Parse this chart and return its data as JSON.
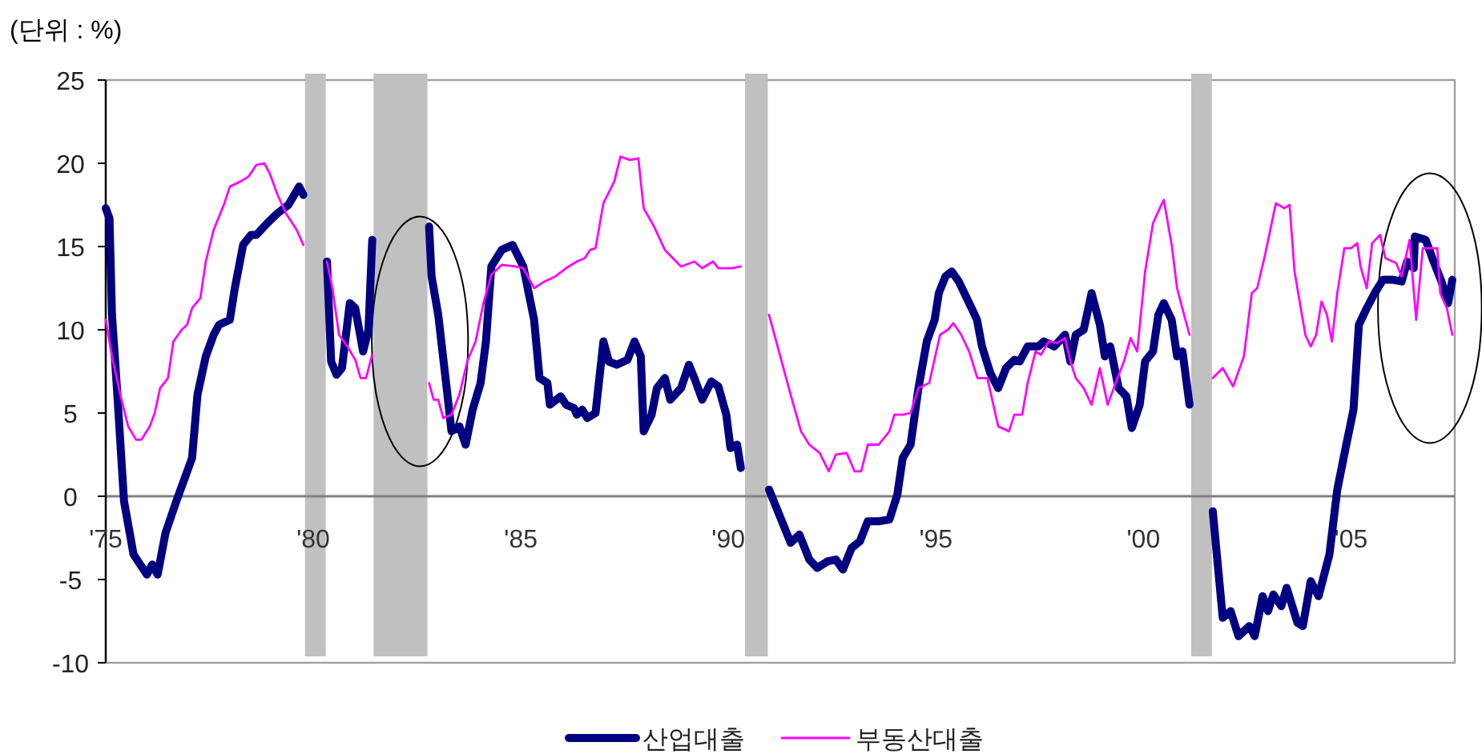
{
  "chart_data": {
    "type": "line",
    "ylabel": "(단위 : %)",
    "xlim": [
      1975,
      2007.5
    ],
    "ylim": [
      -10,
      25
    ],
    "xticks": [
      {
        "value": 1975,
        "label": "'75"
      },
      {
        "value": 1980,
        "label": "'80"
      },
      {
        "value": 1985,
        "label": "'85"
      },
      {
        "value": 1990,
        "label": "'90"
      },
      {
        "value": 1995,
        "label": "'95"
      },
      {
        "value": 2000,
        "label": "'00"
      },
      {
        "value": 2005,
        "label": "'05"
      }
    ],
    "yticks": [
      -10,
      -5,
      0,
      5,
      10,
      15,
      20,
      25
    ],
    "grid": false,
    "legend": "bottom",
    "marker": "none",
    "line_style": "solid",
    "bands": [
      {
        "axis": "x",
        "from": 1979.8,
        "to": 1980.3,
        "color": "#c0c0c0"
      },
      {
        "axis": "x",
        "from": 1981.45,
        "to": 1982.75,
        "color": "#c0c0c0"
      },
      {
        "axis": "x",
        "from": 1990.4,
        "to": 1990.95,
        "color": "#c0c0c0"
      },
      {
        "axis": "x",
        "from": 2001.15,
        "to": 2001.65,
        "color": "#c0c0c0"
      }
    ],
    "series": [
      {
        "name": "산업대출",
        "color": "#000080",
        "x": [
          1975.0,
          1975.09,
          1975.15,
          1975.28,
          1975.44,
          1975.67,
          1975.99,
          1976.12,
          1976.25,
          1976.44,
          1976.7,
          1976.89,
          1977.08,
          1977.21,
          1977.41,
          1977.6,
          1977.73,
          1977.99,
          1978.11,
          1978.31,
          1978.5,
          1978.63,
          1978.89,
          1979.14,
          1979.4,
          1979.66,
          1979.76,
          1980.33,
          1980.43,
          1980.56,
          1980.69,
          1980.88,
          1981.01,
          1981.2,
          1981.33,
          1981.42,
          1982.79,
          1982.85,
          1983.01,
          1983.2,
          1983.33,
          1983.52,
          1983.67,
          1983.84,
          1984.03,
          1984.16,
          1984.29,
          1984.54,
          1984.8,
          1985.06,
          1985.32,
          1985.45,
          1985.64,
          1985.7,
          1985.96,
          1986.09,
          1986.28,
          1986.35,
          1986.48,
          1986.6,
          1986.8,
          1986.99,
          1987.12,
          1987.31,
          1987.57,
          1987.74,
          1987.89,
          1987.96,
          1988.15,
          1988.28,
          1988.47,
          1988.6,
          1988.86,
          1989.05,
          1989.18,
          1989.37,
          1989.59,
          1989.76,
          1989.95,
          1990.05,
          1990.21,
          1990.3,
          1990.98,
          1991.24,
          1991.5,
          1991.71,
          1991.95,
          1992.14,
          1992.4,
          1992.59,
          1992.76,
          1992.97,
          1993.17,
          1993.36,
          1993.62,
          1993.88,
          1994.07,
          1994.2,
          1994.39,
          1994.58,
          1994.78,
          1994.97,
          1995.07,
          1995.23,
          1995.38,
          1995.55,
          1995.86,
          1995.99,
          1996.11,
          1996.31,
          1996.5,
          1996.69,
          1996.89,
          1997.02,
          1997.21,
          1997.47,
          1997.6,
          1997.85,
          1998.11,
          1998.24,
          1998.37,
          1998.56,
          1998.75,
          1998.95,
          1999.07,
          1999.2,
          1999.4,
          1999.59,
          1999.72,
          1999.91,
          2000.04,
          2000.23,
          2000.36,
          2000.49,
          2000.68,
          2000.81,
          2000.94,
          2001.11,
          2001.67,
          2001.91,
          2002.1,
          2002.29,
          2002.55,
          2002.68,
          2002.87,
          2003.0,
          2003.13,
          2003.32,
          2003.45,
          2003.71,
          2003.84,
          2004.03,
          2004.22,
          2004.48,
          2004.67,
          2004.87,
          2005.06,
          2005.19,
          2005.38,
          2005.57,
          2005.77,
          2006.02,
          2006.22,
          2006.35,
          2006.51,
          2006.54,
          2006.8,
          2006.99,
          2007.18,
          2007.34,
          2007.44
        ],
        "values": [
          17.3,
          16.7,
          10.9,
          6.1,
          -0.3,
          -3.5,
          -4.7,
          -4.1,
          -4.7,
          -2.2,
          -0.3,
          1.0,
          2.3,
          6.1,
          8.4,
          9.7,
          10.3,
          10.6,
          12.5,
          15.1,
          15.7,
          15.7,
          16.4,
          17.0,
          17.5,
          18.6,
          18.1,
          14.1,
          8.1,
          7.3,
          7.7,
          11.6,
          11.3,
          8.7,
          10.0,
          15.4,
          16.2,
          13.2,
          10.9,
          6.8,
          3.9,
          4.2,
          3.1,
          5.2,
          6.8,
          9.3,
          13.8,
          14.8,
          15.1,
          13.8,
          10.6,
          7.1,
          6.8,
          5.5,
          6.0,
          5.5,
          5.3,
          4.9,
          5.2,
          4.7,
          5.0,
          9.3,
          8.1,
          7.9,
          8.2,
          9.3,
          8.4,
          3.9,
          4.9,
          6.5,
          7.1,
          5.8,
          6.5,
          7.9,
          7.1,
          5.8,
          6.9,
          6.6,
          4.9,
          2.9,
          3.1,
          1.7,
          0.4,
          -1.2,
          -2.8,
          -2.3,
          -3.8,
          -4.3,
          -3.9,
          -3.8,
          -4.4,
          -3.1,
          -2.7,
          -1.5,
          -1.5,
          -1.4,
          0.1,
          2.3,
          3.1,
          6.5,
          9.3,
          10.6,
          12.2,
          13.2,
          13.5,
          12.9,
          11.3,
          10.6,
          9.0,
          7.4,
          6.5,
          7.7,
          8.2,
          8.1,
          9.0,
          9.0,
          9.3,
          9.0,
          9.7,
          8.1,
          9.7,
          10.0,
          12.2,
          10.3,
          8.4,
          9.0,
          6.5,
          6.0,
          4.1,
          5.5,
          8.1,
          8.7,
          10.9,
          11.6,
          10.6,
          8.4,
          8.7,
          5.5,
          -0.9,
          -7.3,
          -6.9,
          -8.4,
          -7.8,
          -8.4,
          -6.0,
          -6.9,
          -5.9,
          -6.6,
          -5.5,
          -7.6,
          -7.8,
          -5.1,
          -6.0,
          -3.5,
          0.4,
          2.9,
          5.2,
          10.3,
          11.3,
          12.2,
          13.0,
          13.0,
          12.9,
          14.1,
          13.7,
          15.6,
          15.4,
          14.1,
          12.9,
          11.6,
          13.0
        ]
      },
      {
        "name": "부동산대출",
        "color": "#ff00ff",
        "x": [
          1975.0,
          1975.15,
          1975.35,
          1975.54,
          1975.73,
          1975.86,
          1976.06,
          1976.18,
          1976.31,
          1976.5,
          1976.63,
          1976.83,
          1976.96,
          1977.08,
          1977.28,
          1977.41,
          1977.6,
          1977.86,
          1977.99,
          1978.24,
          1978.44,
          1978.63,
          1978.82,
          1978.95,
          1979.14,
          1979.34,
          1979.6,
          1979.76,
          1980.33,
          1980.46,
          1980.62,
          1980.82,
          1981.01,
          1981.14,
          1981.27,
          1981.42,
          1982.79,
          1982.9,
          1983.01,
          1983.13,
          1983.33,
          1983.52,
          1983.71,
          1983.91,
          1984.1,
          1984.29,
          1984.54,
          1984.87,
          1985.06,
          1985.32,
          1985.57,
          1985.83,
          1986.09,
          1986.35,
          1986.54,
          1986.67,
          1986.8,
          1986.99,
          1987.25,
          1987.4,
          1987.63,
          1987.83,
          1987.96,
          1988.21,
          1988.47,
          1988.86,
          1989.18,
          1989.37,
          1989.63,
          1989.76,
          1990.08,
          1990.3,
          1990.98,
          1991.24,
          1991.5,
          1991.75,
          1991.95,
          1992.2,
          1992.42,
          1992.59,
          1992.85,
          1993.04,
          1993.2,
          1993.36,
          1993.62,
          1993.88,
          1994.0,
          1994.2,
          1994.39,
          1994.58,
          1994.84,
          1995.1,
          1995.29,
          1995.42,
          1995.61,
          1995.8,
          1996.0,
          1996.24,
          1996.5,
          1996.76,
          1996.89,
          1997.08,
          1997.21,
          1997.4,
          1997.53,
          1997.72,
          1997.92,
          1998.11,
          1998.24,
          1998.37,
          1998.56,
          1998.75,
          1998.95,
          1999.14,
          1999.33,
          1999.53,
          1999.69,
          1999.85,
          2000.04,
          2000.23,
          2000.43,
          2000.49,
          2000.68,
          2000.81,
          2000.98,
          2001.11,
          2001.67,
          2001.91,
          2002.16,
          2002.42,
          2002.61,
          2002.74,
          2002.93,
          2003.19,
          2003.39,
          2003.52,
          2003.64,
          2003.9,
          2004.03,
          2004.16,
          2004.29,
          2004.42,
          2004.54,
          2004.67,
          2004.84,
          2005.0,
          2005.15,
          2005.23,
          2005.38,
          2005.51,
          2005.7,
          2005.83,
          2006.09,
          2006.22,
          2006.41,
          2006.57,
          2006.73,
          2006.93,
          2007.08,
          2007.15,
          2007.31,
          2007.44
        ],
        "values": [
          10.6,
          8.4,
          6.1,
          4.2,
          3.4,
          3.4,
          4.2,
          5.0,
          6.5,
          7.1,
          9.3,
          10.0,
          10.3,
          11.3,
          11.9,
          14.1,
          16.0,
          17.6,
          18.6,
          18.9,
          19.2,
          19.9,
          20.0,
          19.4,
          18.1,
          17.0,
          16.0,
          15.1,
          14.1,
          12.5,
          9.7,
          9.0,
          8.2,
          7.1,
          7.1,
          8.5,
          6.8,
          5.8,
          5.8,
          4.7,
          4.9,
          6.1,
          8.1,
          9.3,
          11.6,
          13.3,
          13.9,
          13.8,
          13.7,
          12.5,
          12.9,
          13.2,
          13.7,
          14.1,
          14.3,
          14.8,
          14.9,
          17.6,
          18.9,
          20.4,
          20.2,
          20.3,
          17.3,
          16.2,
          14.8,
          13.8,
          14.1,
          13.7,
          14.1,
          13.7,
          13.7,
          13.8,
          10.9,
          8.5,
          6.1,
          3.9,
          3.1,
          2.6,
          1.5,
          2.5,
          2.6,
          1.5,
          1.5,
          3.1,
          3.1,
          3.9,
          4.9,
          4.9,
          5.0,
          6.5,
          6.8,
          9.7,
          10.0,
          10.4,
          9.7,
          8.7,
          7.1,
          7.1,
          4.2,
          3.9,
          4.9,
          4.9,
          6.8,
          8.7,
          8.5,
          9.3,
          9.2,
          9.5,
          8.1,
          7.1,
          6.5,
          5.5,
          7.7,
          5.5,
          6.8,
          8.1,
          9.5,
          8.7,
          13.5,
          16.4,
          17.5,
          17.8,
          15.1,
          12.5,
          10.9,
          9.7,
          7.1,
          7.7,
          6.6,
          8.4,
          12.2,
          12.5,
          14.5,
          17.6,
          17.3,
          17.5,
          13.5,
          9.7,
          9.0,
          9.7,
          11.7,
          10.9,
          9.3,
          12.2,
          14.9,
          14.9,
          15.2,
          13.8,
          12.5,
          15.2,
          15.7,
          14.3,
          14.0,
          13.2,
          15.4,
          10.6,
          14.9,
          14.9,
          14.9,
          12.2,
          11.3,
          9.7
        ]
      }
    ]
  }
}
